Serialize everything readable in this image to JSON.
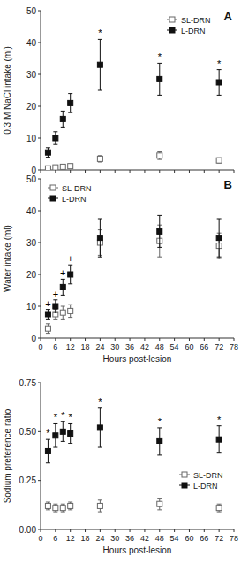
{
  "chart_data": [
    {
      "type": "scatter",
      "title": "A",
      "ylabel": "0.3 M NaCl intake (ml)",
      "x": [
        3,
        6,
        9,
        12,
        24,
        48,
        72
      ],
      "xlim": [
        0,
        78
      ],
      "xticks": [
        0,
        6,
        12,
        18,
        24,
        30,
        36,
        42,
        48,
        54,
        60,
        66,
        72,
        78
      ],
      "ylim": [
        0,
        50
      ],
      "yticks": [
        0,
        10,
        20,
        30,
        40,
        50
      ],
      "tick_labels": "y",
      "grid": false,
      "legend": "upper right",
      "series": [
        {
          "name": "SL-DRN",
          "color": "#666666",
          "marker": "open-square",
          "values": [
            0.5,
            0.8,
            1.0,
            1.2,
            3.5,
            4.5,
            3.0
          ],
          "errors": [
            0.3,
            0.3,
            0.4,
            0.4,
            1.0,
            1.2,
            0.8
          ]
        },
        {
          "name": "L-DRN",
          "color": "#111111",
          "marker": "square",
          "values": [
            5.5,
            10.0,
            16.0,
            21.0,
            33.0,
            28.5,
            27.5
          ],
          "errors": [
            1.5,
            2.0,
            2.5,
            3.0,
            8.0,
            5.0,
            4.0
          ]
        }
      ],
      "annotations": [
        {
          "text": "*",
          "x": 24
        },
        {
          "text": "*",
          "x": 48
        },
        {
          "text": "*",
          "x": 72
        }
      ]
    },
    {
      "type": "scatter",
      "title": "B",
      "xlabel": "Hours post-lesion",
      "ylabel": "Water intake (ml)",
      "x": [
        3,
        6,
        9,
        12,
        24,
        48,
        72
      ],
      "xlim": [
        0,
        78
      ],
      "xticks": [
        0,
        6,
        12,
        18,
        24,
        30,
        36,
        42,
        48,
        54,
        60,
        66,
        72,
        78
      ],
      "ylim": [
        0,
        50
      ],
      "yticks": [
        0,
        10,
        20,
        30,
        40,
        50
      ],
      "grid": false,
      "legend": "upper left",
      "series": [
        {
          "name": "SL-DRN",
          "color": "#666666",
          "marker": "open-square",
          "values": [
            3.0,
            7.5,
            8.0,
            8.5,
            30.0,
            30.5,
            29.0
          ],
          "errors": [
            1.5,
            1.5,
            2.0,
            2.0,
            4.0,
            5.0,
            4.0
          ]
        },
        {
          "name": "L-DRN",
          "color": "#111111",
          "marker": "square",
          "values": [
            7.5,
            10.0,
            16.0,
            20.0,
            31.5,
            33.5,
            31.5
          ],
          "errors": [
            1.5,
            2.0,
            2.5,
            3.0,
            6.0,
            5.0,
            6.0
          ]
        }
      ],
      "annotations": [
        {
          "text": "+",
          "x": 3
        },
        {
          "text": "+",
          "x": 6
        },
        {
          "text": "+",
          "x": 9
        },
        {
          "text": "+",
          "x": 12
        }
      ]
    },
    {
      "type": "scatter",
      "xlabel": "Hours post-lesion",
      "ylabel": "Sodium preference ratio",
      "x": [
        3,
        6,
        9,
        12,
        24,
        48,
        72
      ],
      "xlim": [
        0,
        78
      ],
      "xticks": [
        0,
        6,
        12,
        18,
        24,
        30,
        36,
        42,
        48,
        54,
        60,
        66,
        72,
        78
      ],
      "ylim": [
        0.0,
        0.75
      ],
      "yticks": [
        {
          "value": 0,
          "label": "0.00"
        },
        0.25,
        {
          "value": 0.5,
          "label": "0.50"
        },
        0.75
      ],
      "grid": false,
      "legend": "lower right",
      "series": [
        {
          "name": "SL-DRN",
          "color": "#666666",
          "marker": "open-square",
          "values": [
            0.12,
            0.11,
            0.11,
            0.12,
            0.12,
            0.13,
            0.11
          ],
          "errors": [
            0.02,
            0.02,
            0.02,
            0.02,
            0.03,
            0.03,
            0.02
          ]
        },
        {
          "name": "L-DRN",
          "color": "#111111",
          "marker": "square",
          "values": [
            0.4,
            0.48,
            0.5,
            0.49,
            0.52,
            0.45,
            0.46
          ],
          "errors": [
            0.06,
            0.06,
            0.05,
            0.05,
            0.1,
            0.07,
            0.07
          ]
        }
      ],
      "annotations": [
        {
          "text": "*",
          "x": 3
        },
        {
          "text": "*",
          "x": 6
        },
        {
          "text": "*",
          "x": 9
        },
        {
          "text": "*",
          "x": 12
        },
        {
          "text": "*",
          "x": 24
        },
        {
          "text": "*",
          "x": 48
        },
        {
          "text": "*",
          "x": 72
        }
      ]
    }
  ]
}
